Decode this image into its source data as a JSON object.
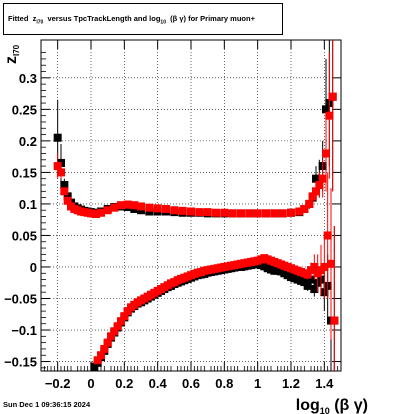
{
  "chart_data": {
    "type": "scatter",
    "title": "Fitted z_I70 versus TpcTrackLength and log10(β γ) for Primary muon+",
    "title_parts": {
      "prefix": "Fitted",
      "z": "z",
      "z_sub": "I70",
      "middle": "versus TpcTrackLength and log",
      "log_sub": "10",
      "suffix": "(β γ) for Primary muon+"
    },
    "xlabel": {
      "main": "log",
      "sub": "10",
      "rest": "(β γ)"
    },
    "ylabel": {
      "main": "z",
      "sub": "I70"
    },
    "xlim": [
      -0.3,
      1.5
    ],
    "ylim": [
      -0.165,
      0.36
    ],
    "xticks": [
      -0.2,
      0,
      0.2,
      0.4,
      0.6,
      0.8,
      1,
      1.2,
      1.4
    ],
    "xtick_labels": [
      "−0.2",
      "0",
      "0.2",
      "0.4",
      "0.6",
      "0.8",
      "1",
      "1.2",
      "1.4"
    ],
    "yticks": [
      -0.15,
      -0.1,
      -0.05,
      0,
      0.05,
      0.1,
      0.15,
      0.2,
      0.25,
      0.3
    ],
    "ytick_labels": [
      "−0.15",
      "−0.1",
      "−0.05",
      "0",
      "0.05",
      "0.1",
      "0.15",
      "0.2",
      "0.25",
      "0.3"
    ],
    "grid": true,
    "series": [
      {
        "marker": "square",
        "color": "#000000",
        "x": [
          -0.2,
          -0.18,
          -0.16,
          -0.14,
          -0.12,
          -0.1,
          -0.08,
          -0.06,
          -0.04,
          -0.02,
          0.0,
          0.03,
          0.06,
          0.1,
          0.14,
          0.18,
          0.22,
          0.26,
          0.3,
          0.35,
          0.4,
          0.45,
          0.5,
          0.55,
          0.6,
          0.65,
          0.7,
          0.75,
          0.8,
          0.85,
          0.9,
          0.95,
          1.0,
          1.05,
          1.1,
          1.15,
          1.2,
          1.25,
          1.28,
          1.31,
          1.33,
          1.35,
          1.37,
          1.39,
          1.41,
          1.43,
          1.45
        ],
        "y": [
          0.205,
          0.165,
          0.13,
          0.112,
          0.102,
          0.096,
          0.093,
          0.091,
          0.089,
          0.088,
          0.087,
          0.086,
          0.088,
          0.092,
          0.095,
          0.096,
          0.095,
          0.092,
          0.09,
          0.088,
          0.088,
          0.088,
          0.087,
          0.086,
          0.086,
          0.086,
          0.085,
          0.085,
          0.085,
          0.085,
          0.085,
          0.085,
          0.085,
          0.085,
          0.085,
          0.085,
          0.086,
          0.087,
          0.092,
          0.1,
          0.11,
          0.14,
          0.14,
          0.16,
          0.25,
          0.26,
          0.27
        ],
        "err": [
          0.06,
          0.03,
          0.01,
          0.006,
          0.004,
          0.003,
          0.003,
          0.003,
          0.002,
          0.002,
          0.002,
          0.002,
          0.002,
          0.002,
          0.002,
          0.002,
          0.002,
          0.002,
          0.002,
          0.002,
          0.002,
          0.002,
          0.002,
          0.002,
          0.002,
          0.002,
          0.002,
          0.002,
          0.002,
          0.002,
          0.002,
          0.002,
          0.002,
          0.002,
          0.002,
          0.002,
          0.003,
          0.004,
          0.005,
          0.008,
          0.012,
          0.02,
          0.03,
          0.04,
          0.08,
          0.1,
          0.15
        ]
      },
      {
        "marker": "square",
        "color": "#ff0000",
        "x": [
          -0.2,
          -0.18,
          -0.16,
          -0.14,
          -0.12,
          -0.1,
          -0.08,
          -0.06,
          -0.04,
          -0.02,
          0.0,
          0.03,
          0.06,
          0.1,
          0.14,
          0.18,
          0.22,
          0.26,
          0.3,
          0.35,
          0.4,
          0.45,
          0.5,
          0.55,
          0.6,
          0.65,
          0.7,
          0.75,
          0.8,
          0.85,
          0.9,
          0.95,
          1.0,
          1.05,
          1.1,
          1.15,
          1.2,
          1.25,
          1.28,
          1.31,
          1.33,
          1.35,
          1.37,
          1.39,
          1.41,
          1.43,
          1.45
        ],
        "y": [
          0.16,
          0.15,
          0.12,
          0.105,
          0.096,
          0.092,
          0.09,
          0.088,
          0.087,
          0.086,
          0.085,
          0.084,
          0.086,
          0.09,
          0.094,
          0.098,
          0.099,
          0.098,
          0.096,
          0.094,
          0.093,
          0.092,
          0.09,
          0.089,
          0.088,
          0.087,
          0.087,
          0.086,
          0.086,
          0.085,
          0.085,
          0.085,
          0.085,
          0.085,
          0.085,
          0.085,
          0.086,
          0.088,
          0.092,
          0.1,
          0.112,
          0.12,
          0.13,
          0.14,
          0.18,
          0.24,
          0.27
        ],
        "err": [
          0.02,
          0.01,
          0.006,
          0.004,
          0.003,
          0.003,
          0.002,
          0.002,
          0.002,
          0.002,
          0.002,
          0.002,
          0.002,
          0.002,
          0.002,
          0.002,
          0.002,
          0.002,
          0.002,
          0.002,
          0.002,
          0.002,
          0.002,
          0.002,
          0.002,
          0.002,
          0.002,
          0.002,
          0.002,
          0.002,
          0.002,
          0.002,
          0.002,
          0.002,
          0.002,
          0.002,
          0.003,
          0.004,
          0.005,
          0.008,
          0.01,
          0.015,
          0.02,
          0.03,
          0.06,
          0.1,
          0.15
        ]
      },
      {
        "marker": "square",
        "color": "#000000",
        "x": [
          0.02,
          0.04,
          0.06,
          0.08,
          0.1,
          0.12,
          0.14,
          0.16,
          0.18,
          0.2,
          0.22,
          0.24,
          0.26,
          0.28,
          0.3,
          0.32,
          0.34,
          0.36,
          0.38,
          0.4,
          0.42,
          0.44,
          0.46,
          0.48,
          0.5,
          0.52,
          0.54,
          0.56,
          0.58,
          0.6,
          0.62,
          0.64,
          0.66,
          0.68,
          0.7,
          0.72,
          0.74,
          0.76,
          0.78,
          0.8,
          0.82,
          0.84,
          0.86,
          0.88,
          0.9,
          0.92,
          0.94,
          0.96,
          0.98,
          1.0,
          1.02,
          1.04,
          1.06,
          1.08,
          1.1,
          1.12,
          1.14,
          1.16,
          1.18,
          1.2,
          1.22,
          1.24,
          1.26,
          1.28,
          1.3,
          1.32,
          1.34,
          1.36,
          1.38,
          1.4,
          1.42,
          1.44,
          1.46
        ],
        "y": [
          -0.158,
          -0.152,
          -0.143,
          -0.133,
          -0.122,
          -0.112,
          -0.104,
          -0.096,
          -0.088,
          -0.08,
          -0.072,
          -0.066,
          -0.062,
          -0.058,
          -0.056,
          -0.053,
          -0.05,
          -0.047,
          -0.044,
          -0.041,
          -0.038,
          -0.035,
          -0.032,
          -0.03,
          -0.027,
          -0.025,
          -0.023,
          -0.021,
          -0.019,
          -0.017,
          -0.015,
          -0.013,
          -0.012,
          -0.011,
          -0.009,
          -0.008,
          -0.007,
          -0.006,
          -0.005,
          -0.004,
          -0.003,
          -0.002,
          -0.001,
          0.0,
          0.0,
          0.001,
          0.002,
          0.003,
          0.004,
          0.004,
          0.003,
          0.001,
          -0.002,
          -0.004,
          -0.006,
          -0.006,
          -0.007,
          -0.01,
          -0.013,
          -0.016,
          -0.018,
          -0.02,
          -0.022,
          -0.024,
          -0.03,
          -0.02,
          -0.035,
          -0.025,
          -0.02,
          -0.04,
          -0.03,
          -0.085,
          -0.085
        ],
        "err": [
          0.008,
          0.005,
          0.004,
          0.003,
          0.003,
          0.002,
          0.002,
          0.002,
          0.002,
          0.002,
          0.002,
          0.002,
          0.002,
          0.002,
          0.002,
          0.002,
          0.002,
          0.002,
          0.002,
          0.002,
          0.002,
          0.002,
          0.002,
          0.002,
          0.002,
          0.002,
          0.002,
          0.002,
          0.002,
          0.002,
          0.002,
          0.002,
          0.002,
          0.002,
          0.002,
          0.002,
          0.002,
          0.002,
          0.002,
          0.002,
          0.002,
          0.002,
          0.002,
          0.002,
          0.002,
          0.002,
          0.002,
          0.002,
          0.002,
          0.002,
          0.002,
          0.002,
          0.002,
          0.002,
          0.002,
          0.002,
          0.002,
          0.002,
          0.003,
          0.003,
          0.003,
          0.004,
          0.004,
          0.005,
          0.008,
          0.01,
          0.012,
          0.015,
          0.02,
          0.03,
          0.05,
          0.15,
          0.15
        ]
      },
      {
        "marker": "square",
        "color": "#ff0000",
        "x": [
          0.04,
          0.06,
          0.08,
          0.1,
          0.12,
          0.14,
          0.16,
          0.18,
          0.2,
          0.22,
          0.24,
          0.26,
          0.28,
          0.3,
          0.32,
          0.34,
          0.36,
          0.38,
          0.4,
          0.42,
          0.44,
          0.46,
          0.48,
          0.5,
          0.52,
          0.54,
          0.56,
          0.58,
          0.6,
          0.62,
          0.64,
          0.66,
          0.68,
          0.7,
          0.72,
          0.74,
          0.76,
          0.78,
          0.8,
          0.82,
          0.84,
          0.86,
          0.88,
          0.9,
          0.92,
          0.94,
          0.96,
          0.98,
          1.0,
          1.02,
          1.04,
          1.06,
          1.08,
          1.1,
          1.12,
          1.14,
          1.16,
          1.18,
          1.2,
          1.22,
          1.24,
          1.26,
          1.28,
          1.3,
          1.32,
          1.34,
          1.36,
          1.38,
          1.4,
          1.42,
          1.44,
          1.46
        ],
        "y": [
          -0.148,
          -0.14,
          -0.13,
          -0.12,
          -0.11,
          -0.102,
          -0.094,
          -0.086,
          -0.078,
          -0.07,
          -0.064,
          -0.06,
          -0.056,
          -0.053,
          -0.05,
          -0.047,
          -0.044,
          -0.041,
          -0.038,
          -0.035,
          -0.032,
          -0.029,
          -0.026,
          -0.024,
          -0.021,
          -0.019,
          -0.017,
          -0.015,
          -0.013,
          -0.011,
          -0.009,
          -0.008,
          -0.006,
          -0.005,
          -0.004,
          -0.003,
          -0.002,
          -0.001,
          0.0,
          0.001,
          0.002,
          0.003,
          0.004,
          0.005,
          0.006,
          0.007,
          0.008,
          0.009,
          0.01,
          0.012,
          0.014,
          0.012,
          0.01,
          0.008,
          0.006,
          0.004,
          0.002,
          0.0,
          -0.002,
          -0.004,
          -0.006,
          -0.008,
          -0.01,
          -0.012,
          -0.005,
          0.0,
          -0.01,
          -0.005,
          0.0,
          0.05,
          0.005,
          -0.085
        ],
        "err": [
          0.005,
          0.004,
          0.003,
          0.003,
          0.002,
          0.002,
          0.002,
          0.002,
          0.002,
          0.002,
          0.002,
          0.002,
          0.002,
          0.002,
          0.002,
          0.002,
          0.002,
          0.002,
          0.002,
          0.002,
          0.002,
          0.002,
          0.002,
          0.002,
          0.002,
          0.002,
          0.002,
          0.002,
          0.002,
          0.002,
          0.002,
          0.002,
          0.002,
          0.002,
          0.002,
          0.002,
          0.002,
          0.002,
          0.002,
          0.002,
          0.002,
          0.002,
          0.002,
          0.002,
          0.002,
          0.002,
          0.002,
          0.002,
          0.002,
          0.002,
          0.002,
          0.002,
          0.002,
          0.002,
          0.002,
          0.002,
          0.003,
          0.003,
          0.003,
          0.004,
          0.004,
          0.005,
          0.006,
          0.008,
          0.012,
          0.02,
          0.03,
          0.04,
          0.05,
          0.1,
          0.12,
          0.15
        ]
      }
    ]
  },
  "footer": {
    "date": "Sun Dec  1 09:36:15 2024"
  }
}
